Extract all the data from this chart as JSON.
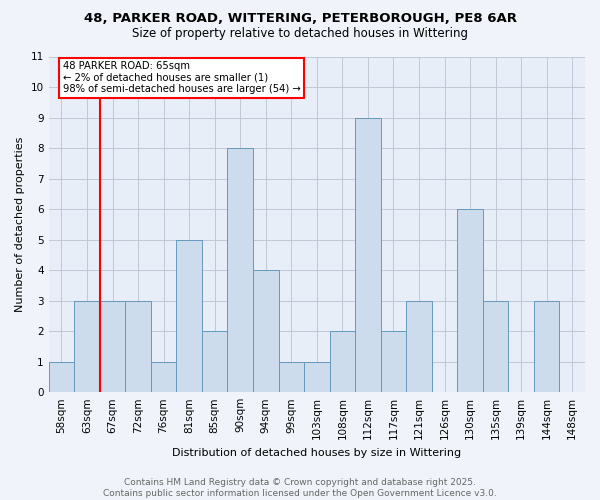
{
  "title1": "48, PARKER ROAD, WITTERING, PETERBOROUGH, PE8 6AR",
  "title2": "Size of property relative to detached houses in Wittering",
  "xlabel": "Distribution of detached houses by size in Wittering",
  "ylabel": "Number of detached properties",
  "categories": [
    "58sqm",
    "63sqm",
    "67sqm",
    "72sqm",
    "76sqm",
    "81sqm",
    "85sqm",
    "90sqm",
    "94sqm",
    "99sqm",
    "103sqm",
    "108sqm",
    "112sqm",
    "117sqm",
    "121sqm",
    "126sqm",
    "130sqm",
    "135sqm",
    "139sqm",
    "144sqm",
    "148sqm"
  ],
  "values": [
    1,
    3,
    3,
    3,
    1,
    5,
    2,
    8,
    4,
    1,
    1,
    2,
    9,
    2,
    3,
    0,
    6,
    3,
    0,
    3,
    0
  ],
  "bar_color": "#ccdcec",
  "bar_edge_color": "#6699bb",
  "bar_width": 1.0,
  "ylim": [
    0,
    11
  ],
  "yticks": [
    0,
    1,
    2,
    3,
    4,
    5,
    6,
    7,
    8,
    9,
    10,
    11
  ],
  "annotation_text": "48 PARKER ROAD: 65sqm\n← 2% of detached houses are smaller (1)\n98% of semi-detached houses are larger (54) →",
  "red_line_x": 1.5,
  "footer_text": "Contains HM Land Registry data © Crown copyright and database right 2025.\nContains public sector information licensed under the Open Government Licence v3.0.",
  "background_color": "#f0f4fa",
  "plot_bg_color": "#e8eef8",
  "grid_color": "#c0c8d8",
  "title1_fontsize": 9.5,
  "title2_fontsize": 8.5,
  "tick_fontsize": 7.5,
  "ylabel_fontsize": 8,
  "xlabel_fontsize": 8,
  "footer_fontsize": 6.5
}
